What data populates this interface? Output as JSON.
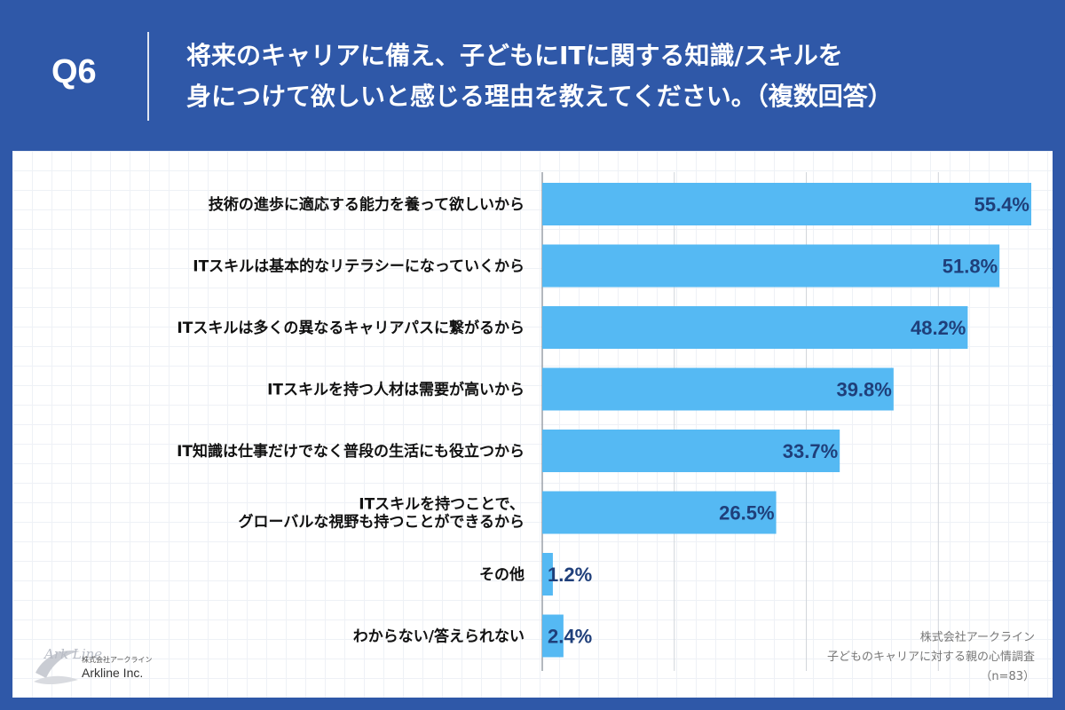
{
  "header": {
    "q_label": "Q6",
    "title_line1": "将来のキャリアに備え、子どもにITに関する知識/スキルを",
    "title_line2": "身につけて欲しいと感じる理由を教えてください。（複数回答）"
  },
  "logo": {
    "small_text": "株式会社アークライン",
    "name": "Arkline Inc.",
    "mark_text": "Ark Line"
  },
  "source": {
    "line1": "株式会社アークライン",
    "line2": "子どものキャリアに対する親の心情調査",
    "line3": "（n=83）"
  },
  "colors": {
    "header_bg": "#2f58a8",
    "bar": "#55b9f3",
    "value_text": "#1f3f7a",
    "gridline": "#d0d4da"
  },
  "chart_data": {
    "type": "bar",
    "orientation": "horizontal",
    "categories": [
      [
        "技術の進歩に適応する能力を養って欲しいから"
      ],
      [
        "ITスキルは基本的なリテラシーになっていくから"
      ],
      [
        "ITスキルは多くの異なるキャリアパスに繋がるから"
      ],
      [
        "ITスキルを持つ人材は需要が高いから"
      ],
      [
        "IT知識は仕事だけでなく普段の生活にも役立つから"
      ],
      [
        "ITスキルを持つことで、",
        "グローバルな視野も持つことができるから"
      ],
      [
        "その他"
      ],
      [
        "わからない/答えられない"
      ]
    ],
    "values": [
      55.4,
      51.8,
      48.2,
      39.8,
      33.7,
      26.5,
      1.2,
      2.4
    ],
    "value_labels": [
      "55.4%",
      "51.8%",
      "48.2%",
      "39.8%",
      "33.7%",
      "26.5%",
      "1.2%",
      "2.4%"
    ],
    "xlim": [
      0,
      55.4
    ],
    "grid": true
  }
}
